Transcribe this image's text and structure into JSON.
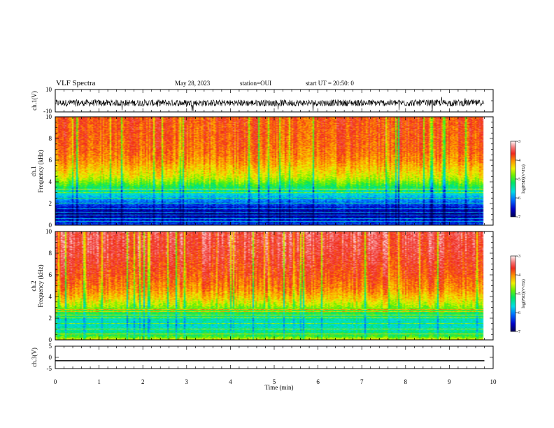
{
  "header": {
    "title": "VLF Spectra",
    "date": "May 28, 2023",
    "station": "station=OUI",
    "start": "start UT = 20:50: 0"
  },
  "chart_data": [
    {
      "type": "line",
      "panel": "ch1-waveform",
      "ylabel": "ch.1(V)",
      "ylim": [
        -10,
        10
      ],
      "yticks": [
        "10",
        "-10"
      ],
      "xlim": [
        0,
        10
      ],
      "series": [
        {
          "values_description_free": true,
          "x": [
            0,
            0.5,
            1,
            1.5,
            2,
            2.5,
            3,
            3.5,
            4,
            4.5,
            5,
            5.5,
            6,
            6.5,
            7,
            7.5,
            8,
            8.5,
            9,
            9.5,
            9.8
          ],
          "y": [
            -2,
            -2,
            -2,
            -2,
            -2,
            -2,
            -2,
            -2,
            -2,
            -2,
            -2,
            -2,
            -2,
            -2,
            -2,
            -2,
            -2,
            -2,
            -2,
            -2,
            -2
          ],
          "noise_amplitude": 3
        }
      ]
    },
    {
      "type": "heatmap",
      "panel": "ch1-spectrogram",
      "ylabel1": "ch.1",
      "ylabel2": "Frequency (kHz)",
      "ylim": [
        0,
        10
      ],
      "yticks": [
        "0",
        "2",
        "4",
        "6",
        "8",
        "10"
      ],
      "xlim": [
        0,
        10
      ],
      "data_end_min": 9.8,
      "colorbar": {
        "label": "log(PSD)(V²/Hz)",
        "range": [
          -7,
          -3
        ],
        "ticks": [
          "-3",
          "-4",
          "-5",
          "-6",
          "-7"
        ]
      },
      "freq_profile": [
        [
          0,
          -6.3
        ],
        [
          0.4,
          -6.5
        ],
        [
          1,
          -6.8
        ],
        [
          1.5,
          -6.6
        ],
        [
          2,
          -6.2
        ],
        [
          2.6,
          -5.8
        ],
        [
          3.2,
          -5.4
        ],
        [
          3.8,
          -4.9
        ],
        [
          4.4,
          -4.5
        ],
        [
          5,
          -4.3
        ],
        [
          6,
          -4.0
        ],
        [
          7,
          -3.85
        ],
        [
          8,
          -3.8
        ],
        [
          10,
          -3.75
        ]
      ],
      "lines_khz": [
        0.3,
        0.6,
        0.9,
        1.2,
        1.5,
        2.0,
        2.5,
        3.0,
        3.3
      ]
    },
    {
      "type": "heatmap",
      "panel": "ch2-spectrogram",
      "ylabel1": "ch.2",
      "ylabel2": "Frequency (kHz)",
      "ylim": [
        0,
        10
      ],
      "yticks": [
        "0",
        "2",
        "4",
        "6",
        "8",
        "10"
      ],
      "xlim": [
        0,
        10
      ],
      "data_end_min": 9.8,
      "colorbar": {
        "label": "log(PSD)(V²/Hz)",
        "range": [
          -7,
          -3
        ],
        "ticks": [
          "-3",
          "-4",
          "-5",
          "-6",
          "-7"
        ]
      },
      "freq_profile": [
        [
          0,
          -4.4
        ],
        [
          0.3,
          -5.0
        ],
        [
          0.8,
          -5.4
        ],
        [
          1.5,
          -5.6
        ],
        [
          2,
          -5.4
        ],
        [
          2.6,
          -5.0
        ],
        [
          3.2,
          -4.6
        ],
        [
          3.8,
          -4.3
        ],
        [
          4.6,
          -4.0
        ],
        [
          6,
          -3.75
        ],
        [
          8,
          -3.55
        ],
        [
          10,
          -3.45
        ]
      ],
      "lines_khz": [
        0.5,
        1.0,
        1.5,
        2.0,
        2.3,
        2.6,
        2.8
      ]
    },
    {
      "type": "line",
      "panel": "ch3-waveform",
      "ylabel": "ch.3(V)",
      "ylim": [
        -5,
        5
      ],
      "yticks": [
        "5",
        "0",
        "-5"
      ],
      "xlim": [
        0,
        10
      ],
      "series": [
        {
          "x": [
            0,
            9.8
          ],
          "y": [
            -1.5,
            -1.5
          ]
        }
      ]
    }
  ],
  "xaxis": {
    "label": "Time (min)",
    "ticks": [
      "0",
      "1",
      "2",
      "3",
      "4",
      "5",
      "6",
      "7",
      "8",
      "9",
      "10"
    ]
  }
}
